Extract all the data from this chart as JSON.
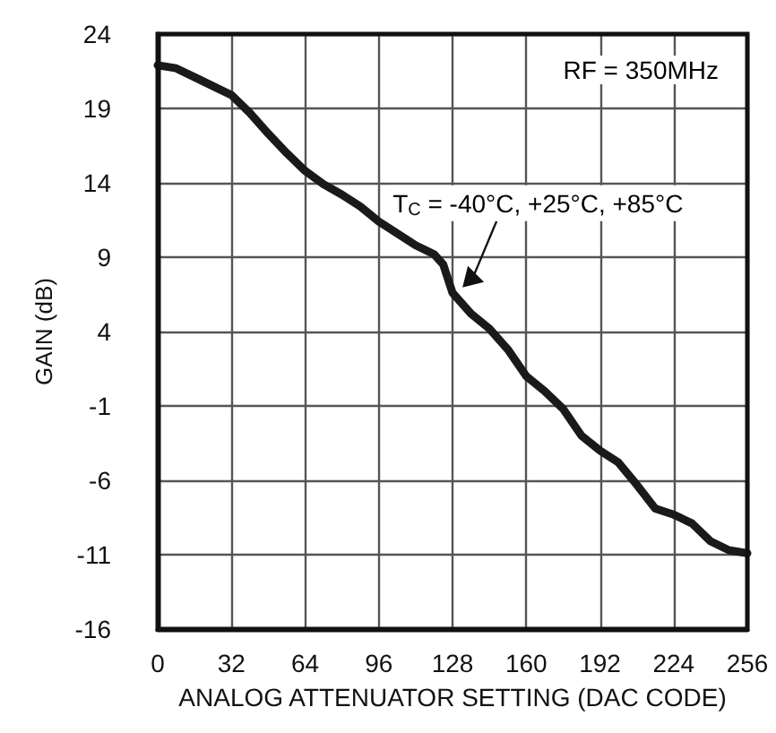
{
  "chart_data": {
    "type": "line",
    "xlabel": "ANALOG ATTENUATOR SETTING (DAC CODE)",
    "ylabel": "GAIN (dB)",
    "x": [
      0,
      8,
      16,
      24,
      32,
      40,
      48,
      56,
      64,
      72,
      80,
      88,
      96,
      104,
      112,
      120,
      124,
      128,
      136,
      144,
      152,
      160,
      168,
      176,
      184,
      192,
      200,
      208,
      216,
      224,
      232,
      240,
      248,
      256
    ],
    "series": [
      {
        "color": "#1a1a1a",
        "values": [
          21.9,
          21.7,
          21.1,
          20.5,
          19.9,
          18.7,
          17.3,
          16.0,
          14.8,
          13.9,
          13.2,
          12.4,
          11.4,
          10.6,
          9.8,
          9.2,
          8.5,
          6.6,
          5.2,
          4.2,
          2.8,
          1.0,
          0.0,
          -1.2,
          -3.0,
          -4.0,
          -4.8,
          -6.3,
          -7.9,
          -8.3,
          -8.9,
          -10.1,
          -10.7,
          -10.9
        ]
      }
    ],
    "xlim": [
      0,
      256
    ],
    "xticks": [
      0,
      32,
      64,
      96,
      128,
      160,
      192,
      224,
      256
    ],
    "ylim": [
      -16,
      24
    ],
    "yticks": [
      -16,
      -11,
      -6,
      -1,
      4,
      9,
      14,
      19,
      24
    ],
    "grid": true,
    "marker": "none",
    "line_style": "solid",
    "annotations": [
      "RF = 350MHz",
      {
        "text": "T$_{C}$ = -40°C, +25°C, +85°C",
        "x": 130,
        "y": 6.6
      }
    ]
  }
}
